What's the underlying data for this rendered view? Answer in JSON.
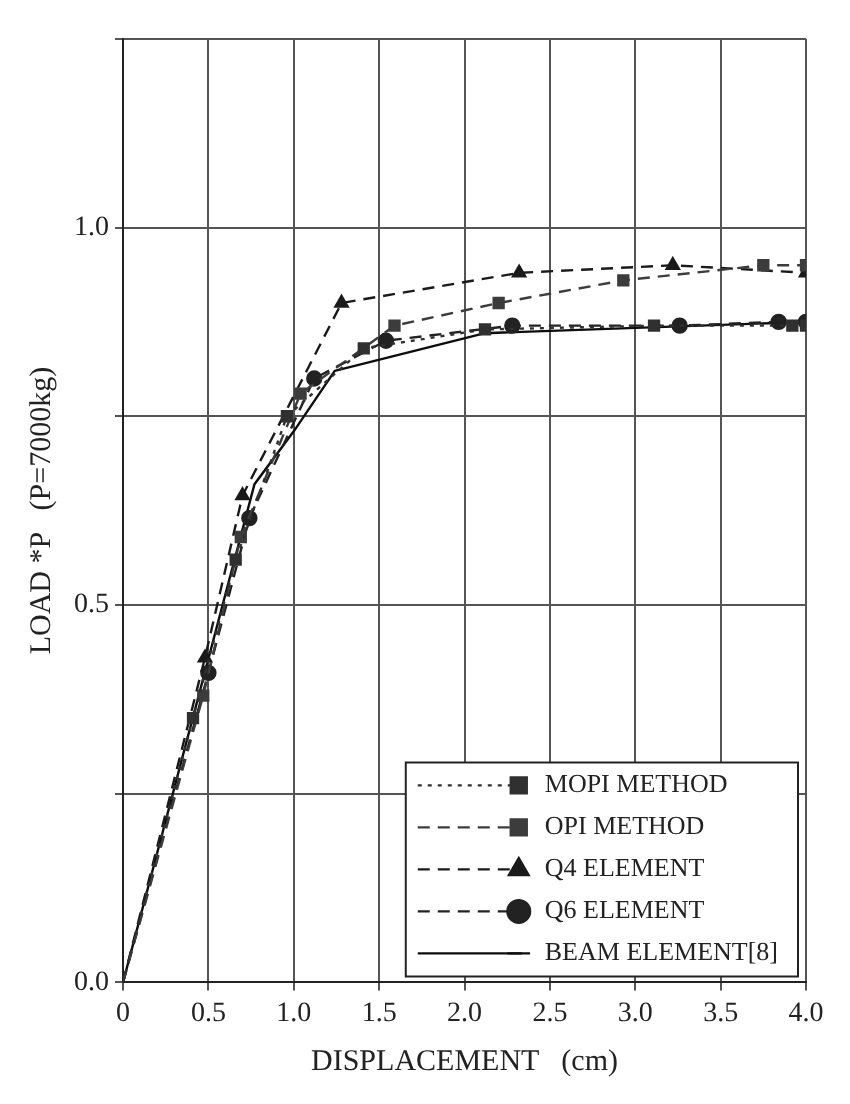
{
  "chart_data": {
    "type": "line",
    "xlabel": "DISPLACEMENT   (cm)",
    "ylabel": "LOAD *P   (P=7000kg)",
    "xlim": [
      0,
      4
    ],
    "xticks": [
      0,
      {
        "value": 0.5,
        "label": "0.5"
      },
      {
        "value": 1,
        "label": "1.0"
      },
      {
        "value": 1.5,
        "label": "1.5"
      },
      {
        "value": 2,
        "label": "2.0"
      },
      {
        "value": 2.5,
        "label": "2.5"
      },
      {
        "value": 3,
        "label": "3.0"
      },
      {
        "value": 3.5,
        "label": "3.5"
      },
      {
        "value": 4,
        "label": "4.0"
      }
    ],
    "ylim": [
      0,
      1.25
    ],
    "yticks": [
      {
        "value": 0,
        "label": "0.0"
      },
      {
        "value": 0.25,
        "label": null
      },
      {
        "value": 0.5,
        "label": "0.5"
      },
      {
        "value": 0.75,
        "label": null
      },
      {
        "value": 1,
        "label": "1.0"
      },
      {
        "value": 1.25,
        "label": null
      }
    ],
    "grid": true,
    "legend": "bottom right",
    "series": [
      {
        "name": "MOPI METHOD",
        "color": "#303030",
        "line_style": "dotted",
        "marker": "square",
        "x": [
          0,
          0.41,
          0.66,
          0.96,
          1.41,
          2.12,
          3.11,
          3.92,
          4.0
        ],
        "values": [
          0,
          0.35,
          0.56,
          0.75,
          0.84,
          0.865,
          0.87,
          0.87,
          0.87
        ]
      },
      {
        "name": "OPI METHOD",
        "color": "#3c3c3c",
        "line_style": "dashed",
        "marker": "square",
        "x": [
          0,
          0.47,
          0.69,
          1.04,
          1.59,
          2.2,
          2.93,
          3.75,
          4.0
        ],
        "values": [
          0,
          0.38,
          0.59,
          0.78,
          0.87,
          0.9,
          0.93,
          0.95,
          0.95
        ]
      },
      {
        "name": "Q4 ELEMENT",
        "color": "#1a1a1a",
        "line_style": "dashed",
        "marker": "triangle",
        "x": [
          0,
          0.48,
          0.7,
          1.28,
          2.32,
          3.22,
          4.0
        ],
        "values": [
          0,
          0.43,
          0.645,
          0.9,
          0.94,
          0.95,
          0.94
        ]
      },
      {
        "name": "Q6 ELEMENT",
        "color": "#222222",
        "line_style": "dashed",
        "marker": "circle",
        "x": [
          0,
          0.5,
          0.74,
          1.12,
          1.54,
          2.28,
          3.26,
          3.84,
          4.0
        ],
        "values": [
          0,
          0.41,
          0.615,
          0.8,
          0.85,
          0.87,
          0.87,
          0.875,
          0.875
        ]
      },
      {
        "name": "BEAM ELEMENT[8]",
        "color": "#0d0d0d",
        "line_style": "solid",
        "marker": "none",
        "x": [
          0,
          0.77,
          1.0,
          1.24,
          2.12,
          4.0
        ],
        "values": [
          0,
          0.66,
          0.73,
          0.81,
          0.86,
          0.875
        ]
      }
    ]
  }
}
